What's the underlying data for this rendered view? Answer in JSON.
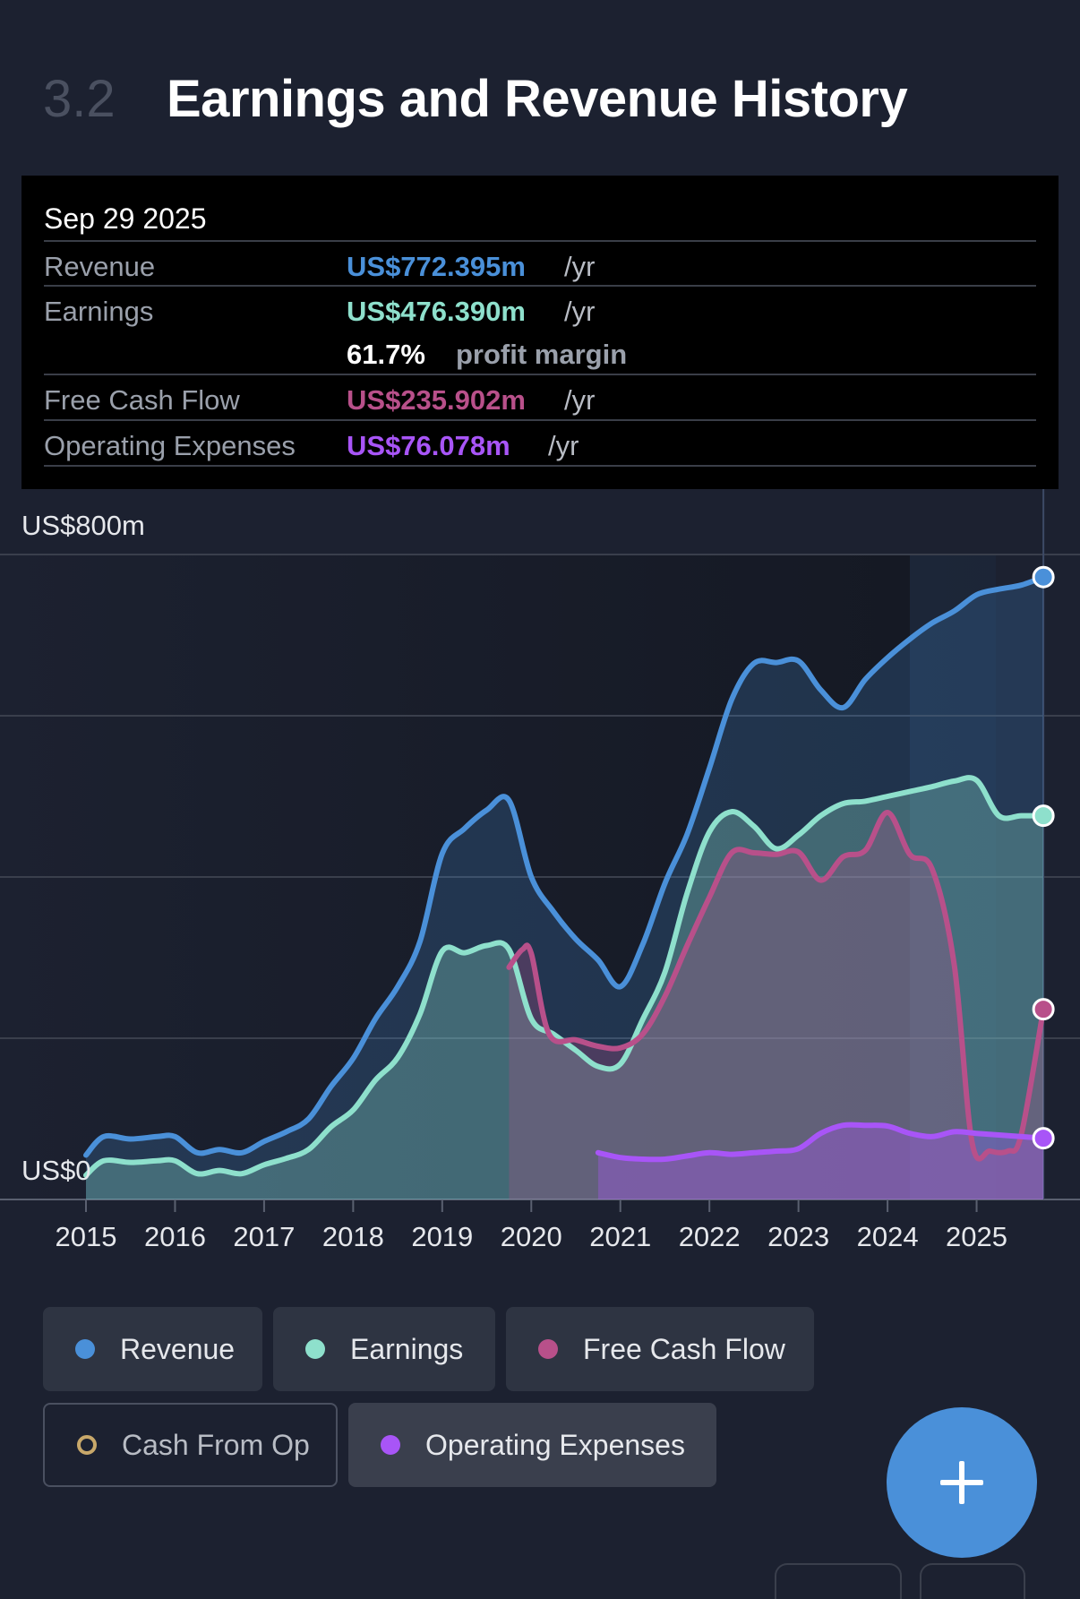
{
  "header": {
    "section_number": "3.2",
    "title": "Earnings and Revenue History"
  },
  "tooltip": {
    "date": "Sep 29 2025",
    "rows": [
      {
        "label": "Revenue",
        "value": "US$772.395m",
        "unit": "/yr",
        "color": "#4a90d9"
      },
      {
        "label": "Earnings",
        "value": "US$476.390m",
        "unit": "/yr",
        "color": "#8ee0cc"
      },
      {
        "label": "Free Cash Flow",
        "value": "US$235.902m",
        "unit": "/yr",
        "color": "#b8508a"
      },
      {
        "label": "Operating Expenses",
        "value": "US$76.078m",
        "unit": "/yr",
        "color": "#a855f7"
      }
    ],
    "margin_value": "61.7%",
    "margin_label": "profit margin"
  },
  "legend": [
    {
      "label": "Revenue",
      "color": "#4a90d9",
      "active": true
    },
    {
      "label": "Earnings",
      "color": "#8ee0cc",
      "active": true
    },
    {
      "label": "Free Cash Flow",
      "color": "#b8508a",
      "active": true
    },
    {
      "label": "Cash From Op",
      "color": "#c8a86a",
      "active": false
    },
    {
      "label": "Operating Expenses",
      "color": "#a855f7",
      "active": true
    }
  ],
  "fab": {
    "icon": "plus-icon"
  },
  "chart_data": {
    "type": "area",
    "y_label_top": "US$800m",
    "y_label_bottom": "US$0",
    "ylim": [
      0,
      800
    ],
    "xlim": [
      2015.0,
      2026.0
    ],
    "xticks": [
      "2015",
      "2016",
      "2017",
      "2018",
      "2019",
      "2020",
      "2021",
      "2022",
      "2023",
      "2024",
      "2025"
    ],
    "grid": true,
    "series": [
      {
        "name": "Revenue",
        "color": "#4a90d9",
        "x": [
          2015.0,
          2015.2,
          2015.5,
          2015.8,
          2016.0,
          2016.25,
          2016.5,
          2016.75,
          2017.0,
          2017.25,
          2017.5,
          2017.75,
          2018.0,
          2018.25,
          2018.5,
          2018.75,
          2019.0,
          2019.25,
          2019.5,
          2019.75,
          2020.0,
          2020.25,
          2020.5,
          2020.75,
          2021.0,
          2021.25,
          2021.5,
          2021.75,
          2022.0,
          2022.25,
          2022.5,
          2022.75,
          2023.0,
          2023.25,
          2023.5,
          2023.75,
          2024.0,
          2024.25,
          2024.5,
          2024.75,
          2025.0,
          2025.25,
          2025.5,
          2025.75
        ],
        "values": [
          55,
          78,
          75,
          78,
          78,
          58,
          62,
          58,
          72,
          84,
          100,
          140,
          175,
          224,
          264,
          320,
          429,
          460,
          483,
          495,
          400,
          357,
          323,
          297,
          264,
          316,
          392,
          453,
          535,
          620,
          665,
          666,
          668,
          632,
          610,
          645,
          672,
          695,
          715,
          730,
          750,
          757,
          762,
          772
        ]
      },
      {
        "name": "Earnings",
        "color": "#8ee0cc",
        "x": [
          2015.0,
          2015.2,
          2015.5,
          2015.8,
          2016.0,
          2016.25,
          2016.5,
          2016.75,
          2017.0,
          2017.25,
          2017.5,
          2017.75,
          2018.0,
          2018.25,
          2018.5,
          2018.75,
          2019.0,
          2019.25,
          2019.5,
          2019.75,
          2020.0,
          2020.25,
          2020.5,
          2020.75,
          2021.0,
          2021.25,
          2021.5,
          2021.75,
          2022.0,
          2022.25,
          2022.5,
          2022.75,
          2023.0,
          2023.25,
          2023.5,
          2023.75,
          2024.0,
          2024.25,
          2024.5,
          2024.75,
          2025.0,
          2025.25,
          2025.5,
          2025.75
        ],
        "values": [
          30,
          48,
          46,
          48,
          48,
          32,
          36,
          32,
          43,
          51,
          62,
          90,
          111,
          148,
          176,
          230,
          308,
          306,
          315,
          310,
          224,
          205,
          185,
          165,
          168,
          223,
          282,
          380,
          456,
          481,
          463,
          435,
          452,
          476,
          491,
          494,
          500,
          506,
          512,
          519,
          520,
          476,
          476,
          476
        ]
      },
      {
        "name": "Free Cash Flow",
        "color": "#b8508a",
        "x": [
          2019.75,
          2019.9,
          2020.0,
          2020.2,
          2020.5,
          2020.75,
          2021.0,
          2021.25,
          2021.5,
          2021.75,
          2022.0,
          2022.25,
          2022.5,
          2022.75,
          2023.0,
          2023.25,
          2023.5,
          2023.75,
          2024.0,
          2024.25,
          2024.5,
          2024.75,
          2024.95,
          2025.15,
          2025.35,
          2025.5,
          2025.75
        ],
        "values": [
          288,
          310,
          305,
          205,
          198,
          190,
          188,
          205,
          252,
          315,
          375,
          430,
          430,
          428,
          431,
          396,
          425,
          433,
          480,
          428,
          410,
          290,
          70,
          60,
          60,
          80,
          236
        ]
      },
      {
        "name": "Operating Expenses",
        "color": "#a855f7",
        "x": [
          2020.75,
          2021.0,
          2021.25,
          2021.5,
          2021.75,
          2022.0,
          2022.25,
          2022.5,
          2022.75,
          2023.0,
          2023.25,
          2023.5,
          2023.75,
          2024.0,
          2024.25,
          2024.5,
          2024.75,
          2025.0,
          2025.25,
          2025.5,
          2025.75
        ],
        "values": [
          58,
          52,
          50,
          50,
          54,
          58,
          56,
          58,
          60,
          63,
          82,
          92,
          92,
          91,
          82,
          78,
          84,
          82,
          80,
          78,
          76
        ]
      }
    ]
  }
}
